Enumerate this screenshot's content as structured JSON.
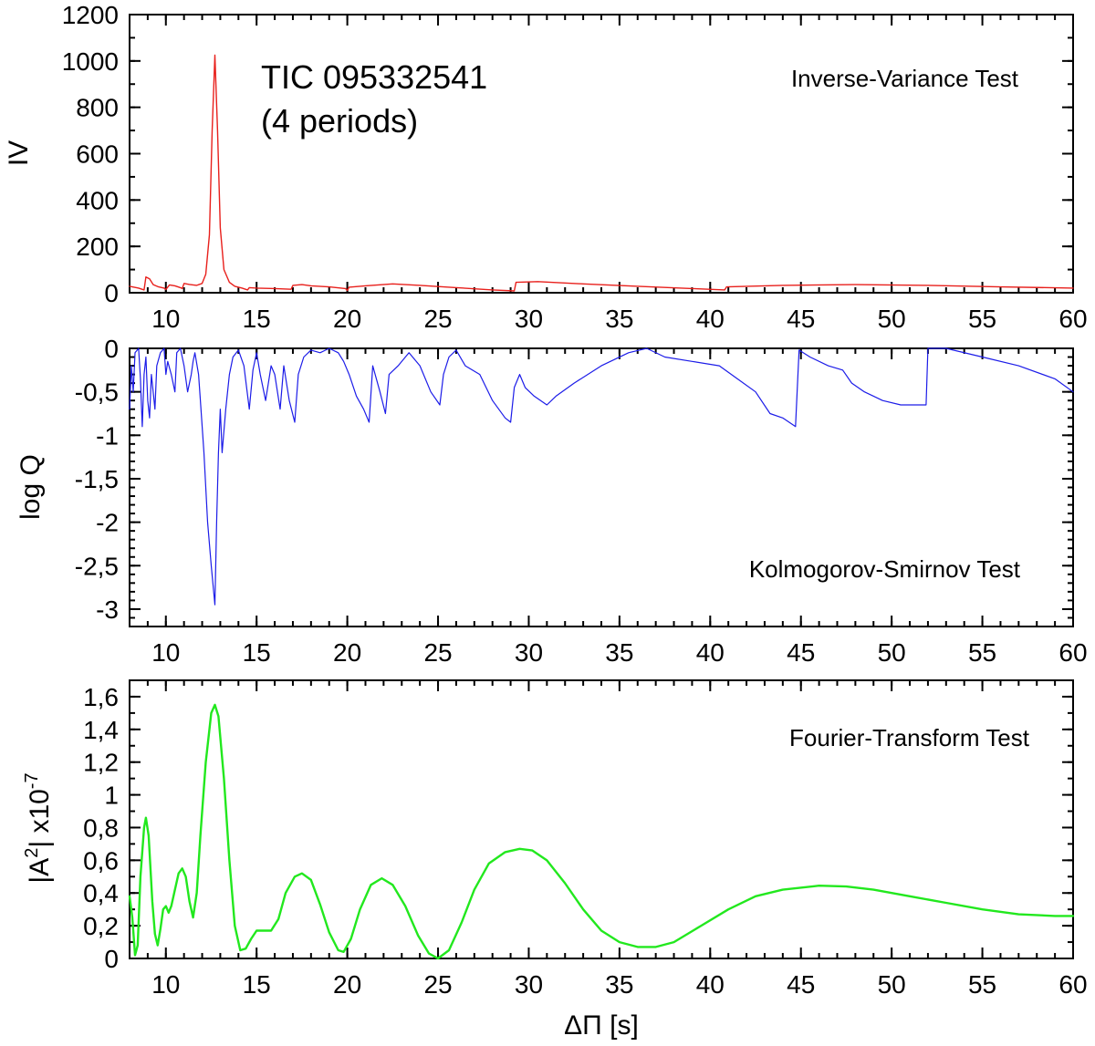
{
  "figure": {
    "target_name": "TIC 095332541",
    "target_periods": "(4 periods)"
  },
  "chart_data": [
    {
      "type": "line",
      "title": "Inverse-Variance Test",
      "xlabel": "",
      "ylabel": "IV",
      "xlim": [
        8,
        60
      ],
      "ylim": [
        0,
        1200
      ],
      "x_ticks": [
        10,
        15,
        20,
        25,
        30,
        35,
        40,
        45,
        50,
        55,
        60
      ],
      "y_ticks": [
        0,
        200,
        400,
        600,
        800,
        1000,
        1200
      ],
      "y_tick_labels": [
        "0",
        "200",
        "400",
        "600",
        "800",
        "1000",
        "1200"
      ],
      "x_minor_step": 1,
      "y_minor_step": 100,
      "color": "#e8201c",
      "series": [
        {
          "values": [
            [
              8.0,
              28
            ],
            [
              8.5,
              20
            ],
            [
              8.8,
              12
            ],
            [
              8.9,
              68
            ],
            [
              9.1,
              60
            ],
            [
              9.3,
              35
            ],
            [
              9.6,
              25
            ],
            [
              9.9,
              20
            ],
            [
              10.0,
              14
            ],
            [
              10.2,
              34
            ],
            [
              10.5,
              30
            ],
            [
              10.8,
              22
            ],
            [
              10.9,
              18
            ],
            [
              11.0,
              40
            ],
            [
              11.3,
              36
            ],
            [
              11.7,
              32
            ],
            [
              12.0,
              40
            ],
            [
              12.2,
              80
            ],
            [
              12.4,
              250
            ],
            [
              12.55,
              700
            ],
            [
              12.7,
              1025
            ],
            [
              12.85,
              700
            ],
            [
              13.0,
              280
            ],
            [
              13.2,
              100
            ],
            [
              13.5,
              45
            ],
            [
              13.8,
              28
            ],
            [
              14.2,
              20
            ],
            [
              14.5,
              12
            ],
            [
              14.6,
              22
            ],
            [
              15.0,
              20
            ],
            [
              16.0,
              18
            ],
            [
              16.9,
              15
            ],
            [
              17.0,
              32
            ],
            [
              17.5,
              35
            ],
            [
              18.0,
              30
            ],
            [
              19.0,
              25
            ],
            [
              19.9,
              18
            ],
            [
              20.0,
              10
            ],
            [
              20.1,
              24
            ],
            [
              21.0,
              30
            ],
            [
              22.5,
              38
            ],
            [
              24.0,
              32
            ],
            [
              26.0,
              22
            ],
            [
              28.0,
              12
            ],
            [
              29.2,
              8
            ],
            [
              29.3,
              45
            ],
            [
              30.5,
              48
            ],
            [
              33.0,
              38
            ],
            [
              36.0,
              28
            ],
            [
              39.0,
              18
            ],
            [
              40.8,
              12
            ],
            [
              40.9,
              25
            ],
            [
              44.0,
              32
            ],
            [
              48.0,
              35
            ],
            [
              52.0,
              32
            ],
            [
              56.0,
              25
            ],
            [
              60.0,
              20
            ]
          ]
        }
      ]
    },
    {
      "type": "line",
      "title": "Kolmogorov-Smirnov Test",
      "xlabel": "",
      "ylabel": "log Q",
      "xlim": [
        8,
        60
      ],
      "ylim": [
        -3.2,
        0
      ],
      "x_ticks": [
        10,
        15,
        20,
        25,
        30,
        35,
        40,
        45,
        50,
        55,
        60
      ],
      "y_ticks": [
        0,
        -0.5,
        -1,
        -1.5,
        -2,
        -2.5,
        -3
      ],
      "y_tick_labels": [
        "0",
        "-0,5",
        "-1",
        "-1,5",
        "-2",
        "-2,5",
        "-3"
      ],
      "x_minor_step": 1,
      "y_minor_step": 0.1,
      "color": "#1c1ce8",
      "series": [
        {
          "values": [
            [
              8.0,
              -0.7
            ],
            [
              8.1,
              -0.2
            ],
            [
              8.2,
              -0.5
            ],
            [
              8.3,
              -0.05
            ],
            [
              8.5,
              0
            ],
            [
              8.6,
              -0.35
            ],
            [
              8.7,
              -0.9
            ],
            [
              8.8,
              -0.3
            ],
            [
              8.9,
              -0.1
            ],
            [
              9.0,
              -0.6
            ],
            [
              9.1,
              -0.8
            ],
            [
              9.2,
              -0.3
            ],
            [
              9.4,
              -0.7
            ],
            [
              9.5,
              -0.2
            ],
            [
              9.7,
              -0.05
            ],
            [
              9.9,
              0
            ],
            [
              10.0,
              -0.3
            ],
            [
              10.1,
              -0.15
            ],
            [
              10.3,
              -0.3
            ],
            [
              10.5,
              -0.5
            ],
            [
              10.6,
              -0.05
            ],
            [
              10.8,
              0
            ],
            [
              11.0,
              -0.2
            ],
            [
              11.2,
              -0.5
            ],
            [
              11.4,
              -0.3
            ],
            [
              11.5,
              -0.15
            ],
            [
              11.6,
              -0.05
            ],
            [
              11.8,
              -0.3
            ],
            [
              11.9,
              -0.6
            ],
            [
              12.1,
              -1.2
            ],
            [
              12.3,
              -2.0
            ],
            [
              12.5,
              -2.5
            ],
            [
              12.7,
              -2.95
            ],
            [
              12.8,
              -2.0
            ],
            [
              12.9,
              -1.2
            ],
            [
              13.0,
              -0.7
            ],
            [
              13.1,
              -1.2
            ],
            [
              13.3,
              -0.7
            ],
            [
              13.5,
              -0.3
            ],
            [
              13.7,
              -0.1
            ],
            [
              14.0,
              -0.02
            ],
            [
              14.3,
              -0.2
            ],
            [
              14.6,
              -0.7
            ],
            [
              14.8,
              -0.25
            ],
            [
              15.0,
              -0.05
            ],
            [
              15.2,
              -0.3
            ],
            [
              15.5,
              -0.6
            ],
            [
              15.8,
              -0.2
            ],
            [
              16.0,
              -0.3
            ],
            [
              16.3,
              -0.7
            ],
            [
              16.5,
              -0.2
            ],
            [
              16.8,
              -0.6
            ],
            [
              17.1,
              -0.85
            ],
            [
              17.3,
              -0.3
            ],
            [
              17.6,
              -0.1
            ],
            [
              18.0,
              -0.02
            ],
            [
              18.5,
              -0.05
            ],
            [
              19.0,
              0
            ],
            [
              19.5,
              -0.05
            ],
            [
              19.8,
              -0.15
            ],
            [
              20.1,
              -0.3
            ],
            [
              20.5,
              -0.55
            ],
            [
              20.9,
              -0.7
            ],
            [
              21.2,
              -0.85
            ],
            [
              21.4,
              -0.2
            ],
            [
              21.8,
              -0.5
            ],
            [
              22.1,
              -0.75
            ],
            [
              22.3,
              -0.3
            ],
            [
              22.8,
              -0.2
            ],
            [
              23.4,
              -0.05
            ],
            [
              24.0,
              -0.2
            ],
            [
              24.6,
              -0.5
            ],
            [
              25.1,
              -0.65
            ],
            [
              25.3,
              -0.3
            ],
            [
              25.6,
              -0.1
            ],
            [
              26.0,
              -0.02
            ],
            [
              26.5,
              -0.2
            ],
            [
              27.3,
              -0.3
            ],
            [
              28.0,
              -0.6
            ],
            [
              28.7,
              -0.8
            ],
            [
              29.0,
              -0.85
            ],
            [
              29.2,
              -0.45
            ],
            [
              29.5,
              -0.3
            ],
            [
              29.8,
              -0.45
            ],
            [
              30.3,
              -0.55
            ],
            [
              31.0,
              -0.65
            ],
            [
              31.5,
              -0.55
            ],
            [
              32.5,
              -0.4
            ],
            [
              34.0,
              -0.2
            ],
            [
              35.5,
              -0.05
            ],
            [
              36.5,
              0
            ],
            [
              37.5,
              -0.1
            ],
            [
              39.0,
              -0.15
            ],
            [
              40.5,
              -0.2
            ],
            [
              41.5,
              -0.35
            ],
            [
              42.5,
              -0.5
            ],
            [
              43.3,
              -0.75
            ],
            [
              44.0,
              -0.8
            ],
            [
              44.7,
              -0.9
            ],
            [
              44.9,
              -0.02
            ],
            [
              45.5,
              -0.1
            ],
            [
              46.5,
              -0.2
            ],
            [
              47.3,
              -0.25
            ],
            [
              47.8,
              -0.4
            ],
            [
              48.5,
              -0.5
            ],
            [
              49.0,
              -0.55
            ],
            [
              49.5,
              -0.6
            ],
            [
              50.5,
              -0.65
            ],
            [
              51.9,
              -0.65
            ],
            [
              52.0,
              0
            ],
            [
              53.0,
              0
            ],
            [
              55.0,
              -0.1
            ],
            [
              57.0,
              -0.2
            ],
            [
              59.0,
              -0.35
            ],
            [
              60.0,
              -0.5
            ]
          ]
        }
      ]
    },
    {
      "type": "line",
      "title": "Fourier-Transform Test",
      "xlabel": "ΔΠ [s]",
      "ylabel_main": "|A",
      "ylabel_sup": "2",
      "ylabel_rest": "| x10",
      "ylabel_exp": "-7",
      "xlim": [
        8,
        60
      ],
      "ylim": [
        0,
        1.7
      ],
      "x_ticks": [
        10,
        15,
        20,
        25,
        30,
        35,
        40,
        45,
        50,
        55,
        60
      ],
      "y_ticks": [
        0,
        0.2,
        0.4,
        0.6,
        0.8,
        1,
        1.2,
        1.4,
        1.6
      ],
      "y_tick_labels": [
        "0",
        "0,2",
        "0,4",
        "0,6",
        "0,8",
        "1",
        "1,2",
        "1,4",
        "1,6"
      ],
      "x_minor_step": 1,
      "y_minor_step": 0.1,
      "color": "#22e81e",
      "series": [
        {
          "values": [
            [
              8.0,
              0.38
            ],
            [
              8.15,
              0.25
            ],
            [
              8.3,
              0.02
            ],
            [
              8.45,
              0.08
            ],
            [
              8.6,
              0.5
            ],
            [
              8.8,
              0.8
            ],
            [
              8.9,
              0.86
            ],
            [
              9.05,
              0.75
            ],
            [
              9.25,
              0.35
            ],
            [
              9.4,
              0.15
            ],
            [
              9.55,
              0.08
            ],
            [
              9.7,
              0.18
            ],
            [
              9.85,
              0.3
            ],
            [
              10.0,
              0.32
            ],
            [
              10.15,
              0.28
            ],
            [
              10.3,
              0.32
            ],
            [
              10.5,
              0.42
            ],
            [
              10.7,
              0.52
            ],
            [
              10.9,
              0.55
            ],
            [
              11.1,
              0.5
            ],
            [
              11.3,
              0.35
            ],
            [
              11.5,
              0.25
            ],
            [
              11.7,
              0.4
            ],
            [
              11.9,
              0.75
            ],
            [
              12.2,
              1.2
            ],
            [
              12.5,
              1.5
            ],
            [
              12.7,
              1.55
            ],
            [
              12.9,
              1.48
            ],
            [
              13.2,
              1.1
            ],
            [
              13.5,
              0.6
            ],
            [
              13.8,
              0.2
            ],
            [
              14.1,
              0.05
            ],
            [
              14.4,
              0.06
            ],
            [
              14.7,
              0.12
            ],
            [
              15.0,
              0.17
            ],
            [
              15.4,
              0.17
            ],
            [
              15.8,
              0.17
            ],
            [
              16.2,
              0.24
            ],
            [
              16.6,
              0.4
            ],
            [
              17.1,
              0.5
            ],
            [
              17.5,
              0.52
            ],
            [
              18.0,
              0.48
            ],
            [
              18.5,
              0.33
            ],
            [
              19.0,
              0.16
            ],
            [
              19.5,
              0.05
            ],
            [
              19.8,
              0.04
            ],
            [
              20.2,
              0.12
            ],
            [
              20.7,
              0.3
            ],
            [
              21.3,
              0.45
            ],
            [
              21.9,
              0.49
            ],
            [
              22.5,
              0.45
            ],
            [
              23.2,
              0.32
            ],
            [
              23.9,
              0.14
            ],
            [
              24.5,
              0.03
            ],
            [
              25.0,
              0.0
            ],
            [
              25.6,
              0.05
            ],
            [
              26.3,
              0.22
            ],
            [
              27.0,
              0.42
            ],
            [
              27.8,
              0.58
            ],
            [
              28.7,
              0.65
            ],
            [
              29.5,
              0.67
            ],
            [
              30.2,
              0.66
            ],
            [
              31.0,
              0.6
            ],
            [
              32.0,
              0.46
            ],
            [
              33.0,
              0.3
            ],
            [
              34.0,
              0.17
            ],
            [
              35.0,
              0.1
            ],
            [
              36.0,
              0.07
            ],
            [
              37.0,
              0.07
            ],
            [
              38.0,
              0.1
            ],
            [
              39.5,
              0.2
            ],
            [
              41.0,
              0.3
            ],
            [
              42.5,
              0.38
            ],
            [
              44.0,
              0.42
            ],
            [
              46.0,
              0.445
            ],
            [
              47.5,
              0.44
            ],
            [
              49.0,
              0.42
            ],
            [
              51.0,
              0.38
            ],
            [
              53.0,
              0.34
            ],
            [
              55.0,
              0.3
            ],
            [
              57.0,
              0.27
            ],
            [
              59.0,
              0.26
            ],
            [
              60.0,
              0.26
            ]
          ]
        }
      ]
    }
  ]
}
